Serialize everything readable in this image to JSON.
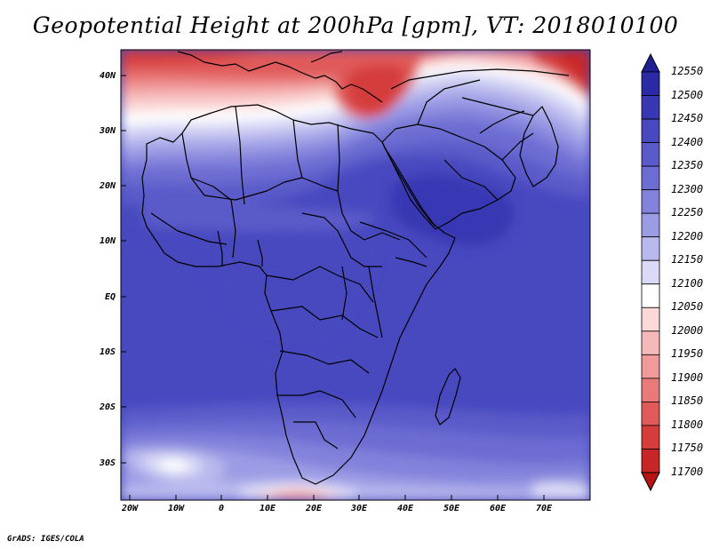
{
  "title": "Geopotential Height at 200hPa [gpm], VT: 2018010100",
  "credit": "GrADS: IGES/COLA",
  "lat_labels": [
    "40N",
    "30N",
    "20N",
    "10N",
    "EQ",
    "10S",
    "20S",
    "30S"
  ],
  "lon_labels": [
    "20W",
    "10W",
    "0",
    "10E",
    "20E",
    "30E",
    "40E",
    "50E",
    "60E",
    "70E"
  ],
  "colorbar": {
    "levels": [
      "12550",
      "12500",
      "12450",
      "12400",
      "12350",
      "12300",
      "12250",
      "12200",
      "12150",
      "12100",
      "12050",
      "12000",
      "11950",
      "11900",
      "11850",
      "11800",
      "11750",
      "11700"
    ],
    "colors": [
      "#1e1e96",
      "#2a2aa6",
      "#3838b4",
      "#4848bf",
      "#5a5ac9",
      "#6c6cd2",
      "#8282dc",
      "#9c9ce5",
      "#b9b9ee",
      "#dadaf6",
      "#ffffff",
      "#fbd9d9",
      "#f6b9b9",
      "#f09a9a",
      "#e97a7a",
      "#e05a5a",
      "#d53c3c",
      "#c72626",
      "#b51414"
    ]
  },
  "map": {
    "region": "Africa, Europe-Middle East and western Indian Ocean",
    "extent": {
      "lon": [
        -22,
        80
      ],
      "lat": [
        -37,
        45
      ]
    }
  }
}
